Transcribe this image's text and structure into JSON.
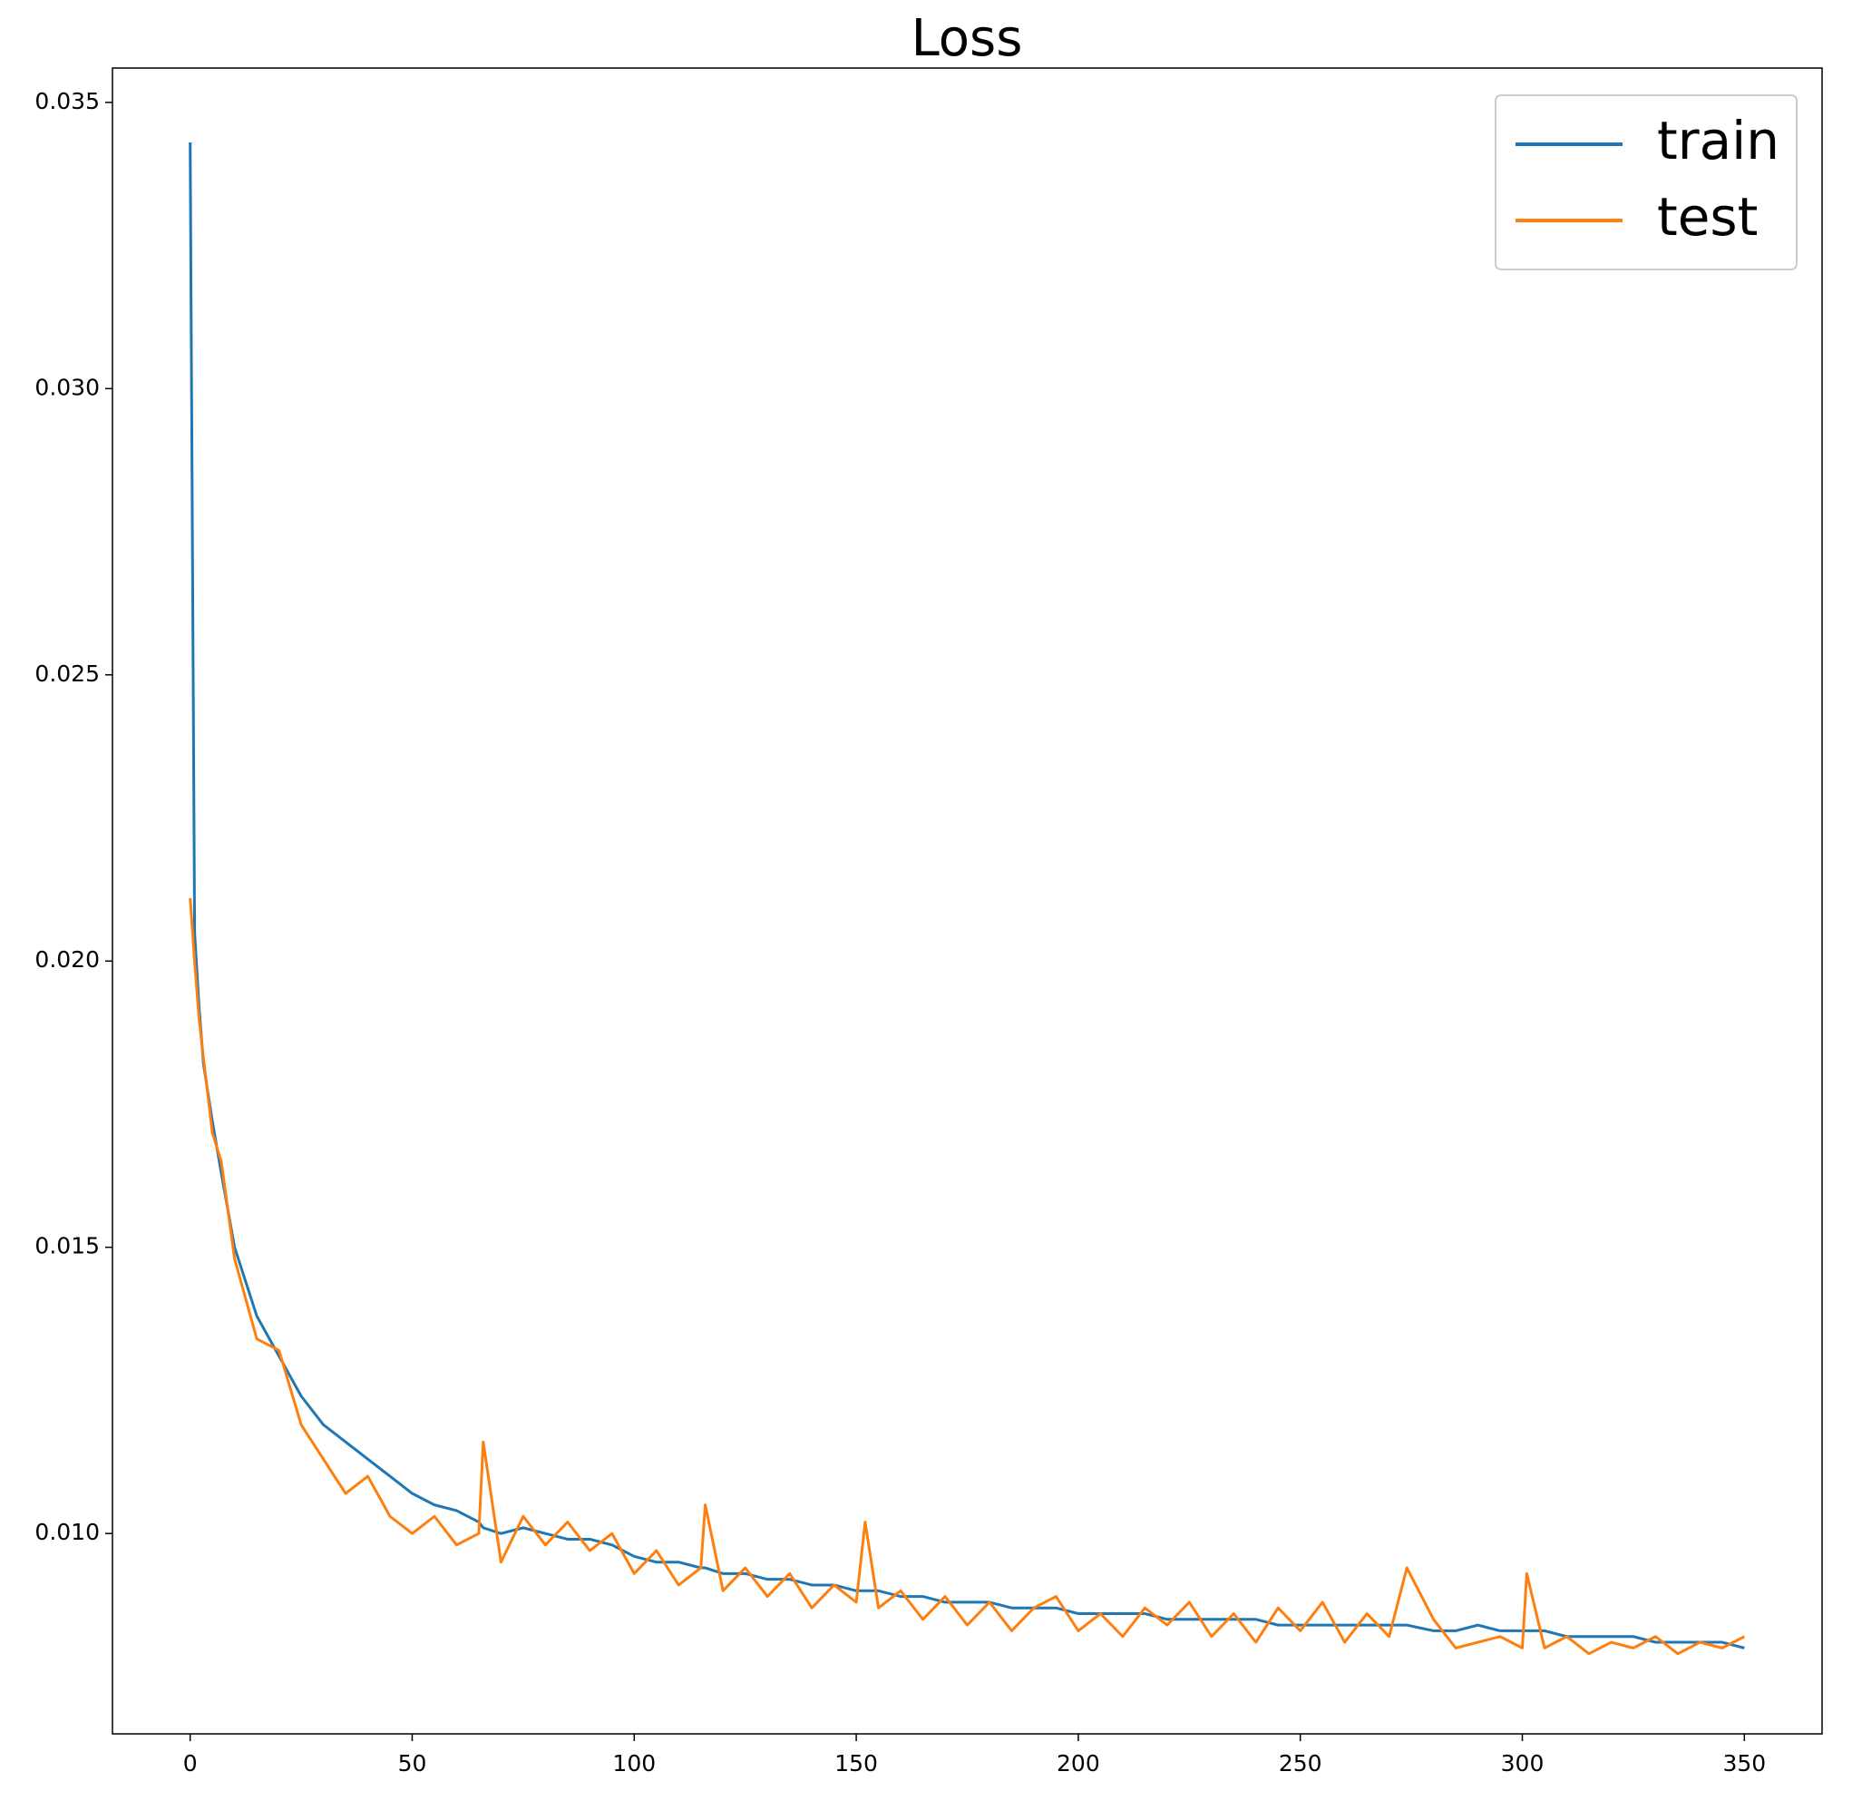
{
  "chart_data": {
    "type": "line",
    "title": "Loss",
    "x": [
      0,
      1,
      2,
      3,
      5,
      7,
      10,
      15,
      20,
      25,
      30,
      35,
      40,
      45,
      50,
      55,
      60,
      65,
      66,
      70,
      75,
      80,
      85,
      90,
      95,
      100,
      105,
      110,
      115,
      116,
      120,
      125,
      130,
      135,
      140,
      145,
      150,
      152,
      155,
      160,
      165,
      170,
      175,
      180,
      185,
      190,
      195,
      200,
      205,
      210,
      215,
      220,
      225,
      230,
      235,
      240,
      245,
      250,
      255,
      260,
      265,
      270,
      274,
      280,
      285,
      290,
      295,
      300,
      301,
      305,
      310,
      315,
      320,
      325,
      330,
      335,
      340,
      345,
      350
    ],
    "series": [
      {
        "name": "train",
        "color": "#1f77b4",
        "values": [
          0.0343,
          0.0205,
          0.0192,
          0.0182,
          0.0172,
          0.0163,
          0.015,
          0.0138,
          0.0131,
          0.0124,
          0.0119,
          0.0116,
          0.0113,
          0.011,
          0.0107,
          0.0105,
          0.0104,
          0.0102,
          0.0101,
          0.01,
          0.0101,
          0.01,
          0.0099,
          0.0099,
          0.0098,
          0.0096,
          0.0095,
          0.0095,
          0.0094,
          0.0094,
          0.0093,
          0.0093,
          0.0092,
          0.0092,
          0.0091,
          0.0091,
          0.009,
          0.009,
          0.009,
          0.0089,
          0.0089,
          0.0088,
          0.0088,
          0.0088,
          0.0087,
          0.0087,
          0.0087,
          0.0086,
          0.0086,
          0.0086,
          0.0086,
          0.0085,
          0.0085,
          0.0085,
          0.0085,
          0.0085,
          0.0084,
          0.0084,
          0.0084,
          0.0084,
          0.0084,
          0.0084,
          0.0084,
          0.0083,
          0.0083,
          0.0084,
          0.0083,
          0.0083,
          0.0083,
          0.0083,
          0.0082,
          0.0082,
          0.0082,
          0.0082,
          0.0081,
          0.0081,
          0.0081,
          0.0081,
          0.008
        ]
      },
      {
        "name": "test",
        "color": "#ff7f0e",
        "values": [
          0.0211,
          0.02,
          0.019,
          0.0183,
          0.017,
          0.0165,
          0.0148,
          0.0134,
          0.0132,
          0.0119,
          0.0113,
          0.0107,
          0.011,
          0.0103,
          0.01,
          0.0103,
          0.0098,
          0.01,
          0.0116,
          0.0095,
          0.0103,
          0.0098,
          0.0102,
          0.0097,
          0.01,
          0.0093,
          0.0097,
          0.0091,
          0.0094,
          0.0105,
          0.009,
          0.0094,
          0.0089,
          0.0093,
          0.0087,
          0.0091,
          0.0088,
          0.0102,
          0.0087,
          0.009,
          0.0085,
          0.0089,
          0.0084,
          0.0088,
          0.0083,
          0.0087,
          0.0089,
          0.0083,
          0.0086,
          0.0082,
          0.0087,
          0.0084,
          0.0088,
          0.0082,
          0.0086,
          0.0081,
          0.0087,
          0.0083,
          0.0088,
          0.0081,
          0.0086,
          0.0082,
          0.0094,
          0.0085,
          0.008,
          0.0081,
          0.0082,
          0.008,
          0.0093,
          0.008,
          0.0082,
          0.0079,
          0.0081,
          0.008,
          0.0082,
          0.0079,
          0.0081,
          0.008,
          0.0082
        ]
      }
    ],
    "xlim": [
      -17.5,
      367.5
    ],
    "xticks": [
      0,
      50,
      100,
      150,
      200,
      250,
      300,
      350
    ],
    "ylim": [
      0.0065,
      0.0356
    ],
    "yticks": [
      {
        "value": 0.01,
        "label": "0.010"
      },
      {
        "value": 0.015,
        "label": "0.015"
      },
      {
        "value": 0.02,
        "label": "0.020"
      },
      {
        "value": 0.025,
        "label": "0.025"
      },
      {
        "value": 0.03,
        "label": "0.030"
      },
      {
        "value": 0.035,
        "label": "0.035"
      }
    ],
    "legend": "upper right"
  }
}
